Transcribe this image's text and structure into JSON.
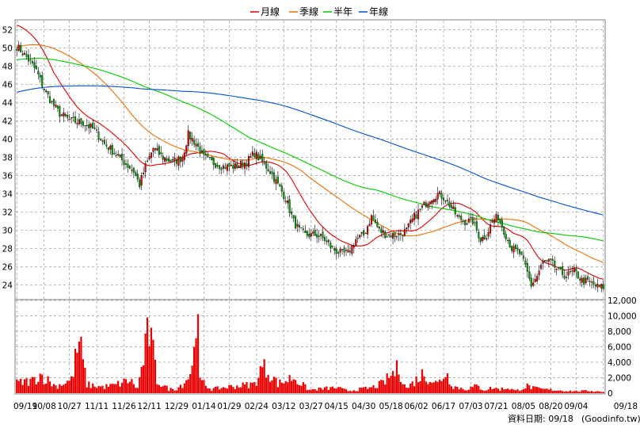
{
  "legend": [
    {
      "label": "月線",
      "color": "#e00000"
    },
    {
      "label": "季線",
      "color": "#ee7000"
    },
    {
      "label": "半年",
      "color": "#00cc00"
    },
    {
      "label": "年線",
      "color": "#0050d0"
    }
  ],
  "footer": {
    "date_label": "資料日期: 09/18",
    "source": "(Goodinfo.tw)"
  },
  "chart_data": [
    {
      "type": "candlestick",
      "title": "",
      "x_tick_labels": [
        "09/19",
        "10/08",
        "10/27",
        "11/11",
        "11/26",
        "12/11",
        "12/29",
        "01/14",
        "01/29",
        "02/24",
        "03/12",
        "03/27",
        "04/15",
        "04/30",
        "05/18",
        "06/02",
        "06/17",
        "07/03",
        "07/21",
        "08/05",
        "08/20",
        "09/04",
        "09/18"
      ],
      "y_tick_labels": [
        "24",
        "26",
        "28",
        "30",
        "32",
        "34",
        "36",
        "38",
        "40",
        "42",
        "44",
        "46",
        "48",
        "50",
        "52"
      ],
      "ylim": [
        22.5,
        53
      ],
      "grid": true,
      "up_color": "#e00000",
      "down_color": "#00a000",
      "close_anchors": [
        [
          0,
          50.2
        ],
        [
          5,
          49.0
        ],
        [
          10,
          47.5
        ],
        [
          14,
          45.5
        ],
        [
          18,
          44.0
        ],
        [
          22,
          42.8
        ],
        [
          28,
          42.0
        ],
        [
          34,
          41.8
        ],
        [
          40,
          41.0
        ],
        [
          45,
          39.5
        ],
        [
          50,
          38.5
        ],
        [
          55,
          37.5
        ],
        [
          60,
          36.5
        ],
        [
          63,
          35.0
        ],
        [
          66,
          37.0
        ],
        [
          70,
          39.0
        ],
        [
          75,
          38.0
        ],
        [
          80,
          37.5
        ],
        [
          85,
          38.0
        ],
        [
          88,
          40.5
        ],
        [
          92,
          39.5
        ],
        [
          96,
          38.0
        ],
        [
          100,
          37.5
        ],
        [
          106,
          37.0
        ],
        [
          112,
          37.0
        ],
        [
          118,
          37.5
        ],
        [
          122,
          38.5
        ],
        [
          126,
          37.5
        ],
        [
          130,
          36.5
        ],
        [
          134,
          35.0
        ],
        [
          138,
          33.5
        ],
        [
          142,
          31.0
        ],
        [
          145,
          30.0
        ],
        [
          148,
          29.5
        ],
        [
          154,
          29.5
        ],
        [
          158,
          29.0
        ],
        [
          162,
          28.0
        ],
        [
          166,
          27.5
        ],
        [
          170,
          27.5
        ],
        [
          174,
          29.0
        ],
        [
          178,
          29.5
        ],
        [
          182,
          31.5
        ],
        [
          186,
          30.0
        ],
        [
          190,
          29.5
        ],
        [
          196,
          29.5
        ],
        [
          200,
          30.0
        ],
        [
          204,
          31.5
        ],
        [
          208,
          32.5
        ],
        [
          212,
          33.5
        ],
        [
          216,
          34.0
        ],
        [
          220,
          33.5
        ],
        [
          223,
          32.5
        ],
        [
          226,
          31.5
        ],
        [
          230,
          31.0
        ],
        [
          234,
          31.0
        ],
        [
          238,
          29.0
        ],
        [
          241,
          29.5
        ],
        [
          244,
          31.0
        ],
        [
          247,
          31.5
        ],
        [
          250,
          30.0
        ],
        [
          254,
          28.0
        ],
        [
          258,
          27.5
        ],
        [
          261,
          26.0
        ],
        [
          264,
          24.0
        ],
        [
          267,
          25.0
        ],
        [
          270,
          26.5
        ],
        [
          274,
          26.5
        ],
        [
          278,
          25.5
        ],
        [
          282,
          25.0
        ],
        [
          286,
          25.5
        ],
        [
          290,
          24.5
        ],
        [
          294,
          24.3
        ],
        [
          298,
          23.8
        ],
        [
          301,
          23.8
        ]
      ],
      "volume_anchors": [
        [
          0,
          1300
        ],
        [
          8,
          1600
        ],
        [
          12,
          2400
        ],
        [
          20,
          900
        ],
        [
          28,
          1700
        ],
        [
          32,
          6700
        ],
        [
          36,
          1100
        ],
        [
          44,
          800
        ],
        [
          50,
          1000
        ],
        [
          58,
          1700
        ],
        [
          62,
          600
        ],
        [
          68,
          8200
        ],
        [
          72,
          1600
        ],
        [
          78,
          500
        ],
        [
          82,
          600
        ],
        [
          86,
          1400
        ],
        [
          90,
          3000
        ],
        [
          92,
          12800
        ],
        [
          94,
          1600
        ],
        [
          100,
          500
        ],
        [
          108,
          800
        ],
        [
          116,
          1000
        ],
        [
          122,
          1200
        ],
        [
          126,
          3400
        ],
        [
          130,
          2600
        ],
        [
          134,
          1200
        ],
        [
          138,
          1600
        ],
        [
          142,
          2100
        ],
        [
          146,
          1200
        ],
        [
          150,
          400
        ],
        [
          158,
          600
        ],
        [
          164,
          700
        ],
        [
          170,
          300
        ],
        [
          176,
          500
        ],
        [
          182,
          700
        ],
        [
          188,
          1300
        ],
        [
          192,
          2300
        ],
        [
          196,
          3200
        ],
        [
          200,
          600
        ],
        [
          204,
          1500
        ],
        [
          208,
          2400
        ],
        [
          212,
          1900
        ],
        [
          216,
          1200
        ],
        [
          220,
          2700
        ],
        [
          224,
          900
        ],
        [
          230,
          500
        ],
        [
          236,
          900
        ],
        [
          240,
          400
        ],
        [
          244,
          700
        ],
        [
          248,
          500
        ],
        [
          252,
          700
        ],
        [
          256,
          300
        ],
        [
          262,
          900
        ],
        [
          266,
          600
        ],
        [
          270,
          500
        ],
        [
          276,
          400
        ],
        [
          282,
          300
        ],
        [
          288,
          250
        ],
        [
          294,
          300
        ],
        [
          300,
          200
        ]
      ],
      "volume_ylim": [
        0,
        12000
      ],
      "volume_tick_labels": [
        "12,000",
        "10,000",
        "8,000",
        "6,000",
        "4,000",
        "2,000",
        "0"
      ]
    }
  ]
}
